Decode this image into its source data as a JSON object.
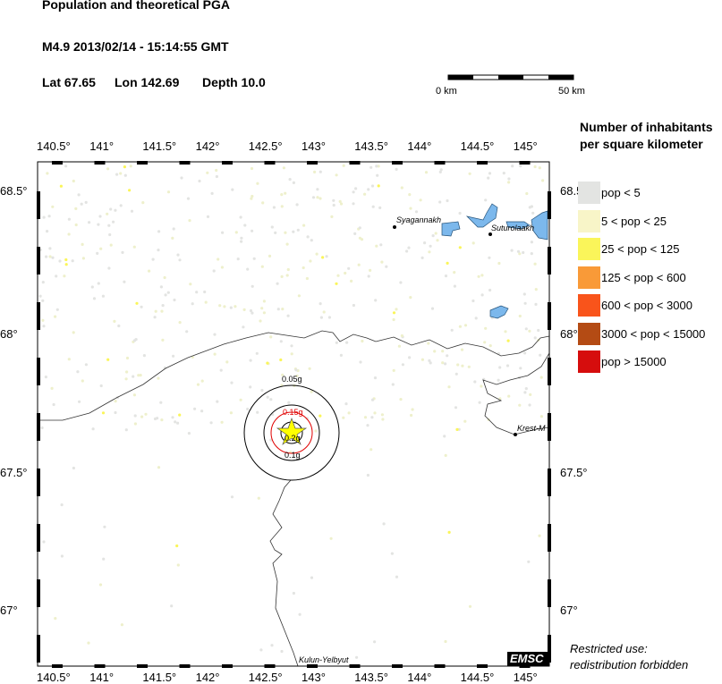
{
  "header": {
    "title": "Population and theoretical PGA",
    "event": "M4.9  2013/02/14 - 15:14:55 GMT",
    "lat_label": "Lat 67.65",
    "lon_label": "Lon 142.69",
    "depth_label": "Depth  10.0"
  },
  "scale_bar": {
    "start": "0 km",
    "end": "50 km"
  },
  "map": {
    "lon_ticks": [
      "140.5°",
      "141°",
      "141.5°",
      "142°",
      "142.5°",
      "143°",
      "143.5°",
      "144°",
      "144.5°",
      "145°"
    ],
    "lat_ticks": [
      "68.5°",
      "68°",
      "67.5°",
      "67°"
    ],
    "places": [
      {
        "name": "Syagannakh"
      },
      {
        "name": "Suturolaakh"
      },
      {
        "name": "Krest-M"
      },
      {
        "name": "Kulun-Yelbyut"
      }
    ],
    "pga_contours": [
      "0.05g",
      "0.1g",
      "0.15g",
      "0.2g"
    ],
    "watermark": "EMSC",
    "colors": {
      "water": "#7cb8ec",
      "epicenter": "#ffff00",
      "pga_red": "#e00000"
    }
  },
  "legend": {
    "title_line1": "Number of inhabitants",
    "title_line2": "per square kilometer",
    "items": [
      {
        "label": "pop < 5",
        "color": "#e3e4e2"
      },
      {
        "label": "5 < pop < 25",
        "color": "#f8f5c8"
      },
      {
        "label": "25 < pop < 125",
        "color": "#faf55a"
      },
      {
        "label": "125 < pop < 600",
        "color": "#f99a38"
      },
      {
        "label": "600 < pop < 3000",
        "color": "#f9541b"
      },
      {
        "label": "3000 < pop < 15000",
        "color": "#b44b14"
      },
      {
        "label": "pop > 15000",
        "color": "#d60d0d"
      }
    ]
  },
  "footer": {
    "line1": "Restricted use:",
    "line2": "redistribution forbidden"
  }
}
